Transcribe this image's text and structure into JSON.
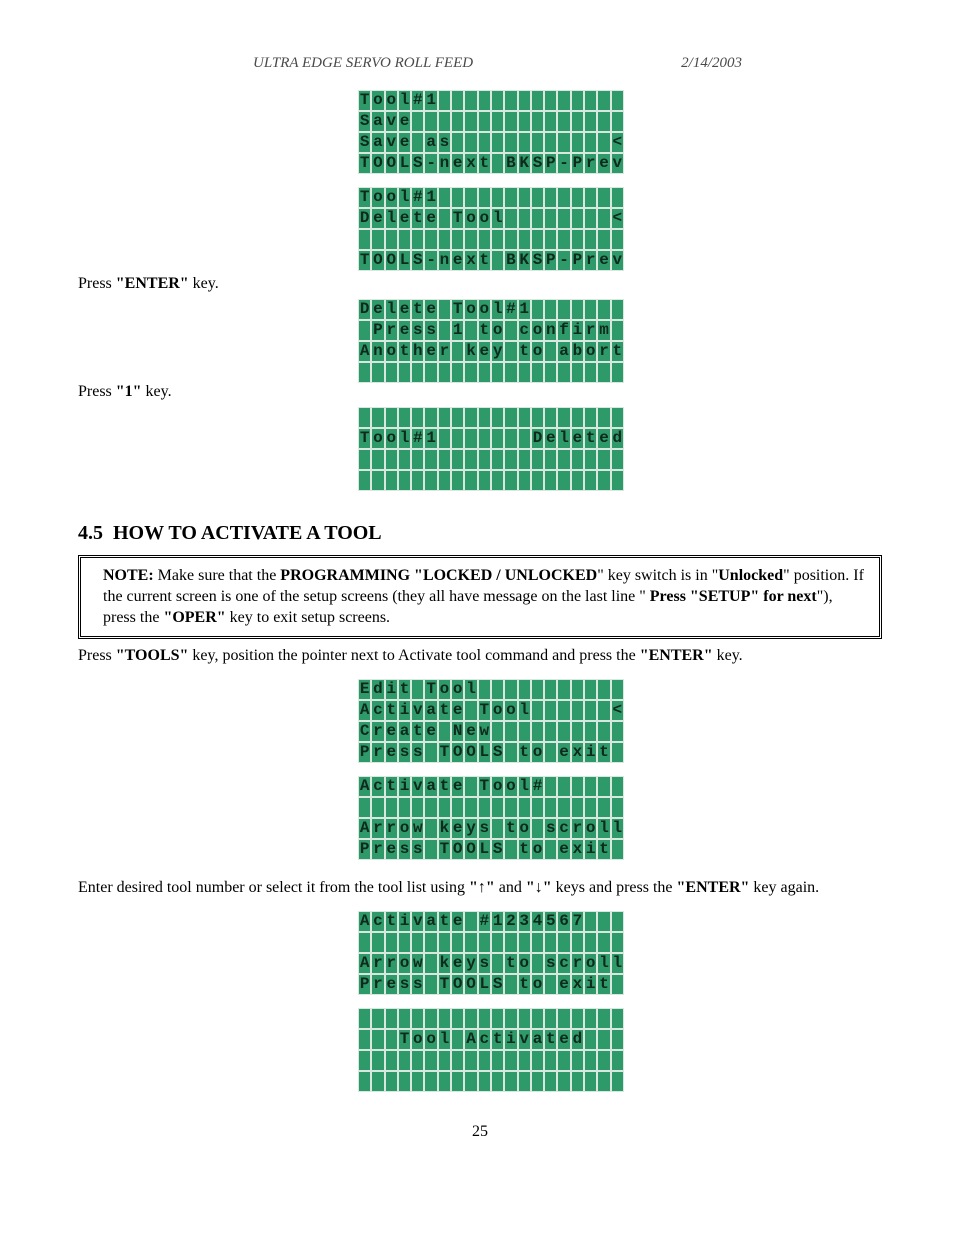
{
  "page": {
    "header_left": "ULTRA EDGE SERVO ROLL FEED",
    "header_right": "2/14/2003",
    "page_number": "25"
  },
  "lcd_style": {
    "cols": 20,
    "rows": 4,
    "cell_bg": "#2e9a6a",
    "cell_border": "#d9e8df",
    "text_color": "#0f2a1c",
    "font_family": "Courier New"
  },
  "instructions": {
    "press_enter": {
      "pre": "Press ",
      "key": "\"ENTER\"",
      "post": " key."
    },
    "press_1": {
      "pre": "Press ",
      "key": "\"1\"",
      "post": " key."
    }
  },
  "screens_top": [
    {
      "lines": [
        "Tool#1",
        "Save",
        "Save as            <",
        "TOOLS-next BKSP-Prev"
      ]
    },
    {
      "lines": [
        "Tool#1",
        "Delete Tool        <",
        "",
        "TOOLS-next BKSP-Prev"
      ]
    },
    {
      "lines": [
        "Delete Tool#1",
        " Press 1 to confirm",
        "Another key to abort",
        ""
      ]
    },
    {
      "lines": [
        "",
        "Tool#1       Deleted",
        "",
        ""
      ]
    }
  ],
  "section": {
    "number": "4.5",
    "title": "HOW TO ACTIVATE A TOOL"
  },
  "note": {
    "label": "NOTE:",
    "t1": "  Make sure that the ",
    "b1": "PROGRAMMING \"LOCKED / UNLOCKED",
    "t2": "\" key switch is in \"",
    "b2": "Unlocked",
    "t3": "\" position.  If the current screen is one of the setup screens (they all have message on the last line \" ",
    "b3": "Press \"SETUP\" for next",
    "t4": "\"), press the ",
    "b4": "\"OPER\"",
    "t5": " key to exit setup screens."
  },
  "para1": {
    "t1": "Press ",
    "b1": "\"TOOLS\"",
    "t2": " key, position the pointer next to Activate tool command and press the ",
    "b2": "\"ENTER\"",
    "t3": " key."
  },
  "screens_mid": [
    {
      "lines": [
        "Edit Tool",
        "Activate Tool      <",
        "Create New",
        "Press TOOLS to exit"
      ]
    },
    {
      "lines": [
        "Activate Tool#",
        "",
        "Arrow keys to scroll",
        "Press TOOLS to exit"
      ]
    }
  ],
  "para2": {
    "t1": "Enter desired tool number or select it from the tool list using ",
    "b1": "\"↑\"",
    "t2": " and ",
    "b2": "\"↓\"",
    "t3": " keys and press the ",
    "b3": "\"ENTER\"",
    "t4": " key again."
  },
  "screens_bot": [
    {
      "lines": [
        "Activate #1234567",
        "",
        "Arrow keys to scroll",
        "Press TOOLS to exit"
      ]
    },
    {
      "lines": [
        "",
        "   Tool Activated",
        "",
        ""
      ]
    }
  ]
}
